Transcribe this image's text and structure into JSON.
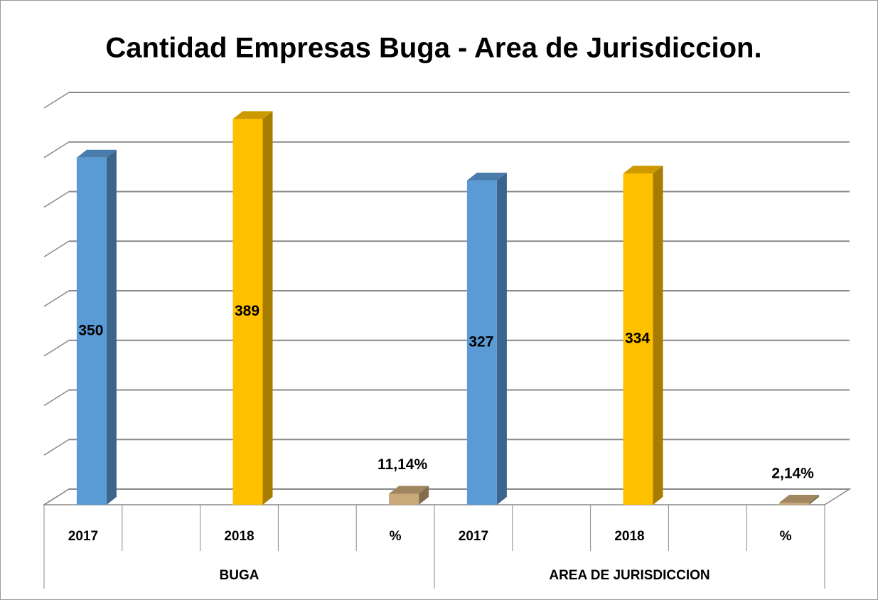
{
  "chart_data": {
    "type": "bar3d",
    "title": "Cantidad Empresas Buga - Area de Jurisdiccion.",
    "categories": [
      "2017",
      null,
      "2018",
      null,
      "%",
      "2017",
      null,
      "2018",
      null,
      "%"
    ],
    "groups": [
      "BUGA",
      "AREA DE JURISDICCION"
    ],
    "values": [
      350,
      null,
      389,
      null,
      11.14,
      327,
      null,
      334,
      null,
      2.14
    ],
    "value_labels": [
      "350",
      null,
      "389",
      null,
      "11,14%",
      "327",
      null,
      "334",
      null,
      "2,14%"
    ],
    "colors": [
      "#5b9bd5",
      null,
      "#ffc000",
      null,
      "#c9a87a",
      "#5b9bd5",
      null,
      "#ffc000",
      null,
      "#c9a87a"
    ],
    "ylim": [
      0,
      400
    ],
    "yticks": [
      0,
      50,
      100,
      150,
      200,
      250,
      300,
      350,
      400
    ],
    "grid": true
  }
}
